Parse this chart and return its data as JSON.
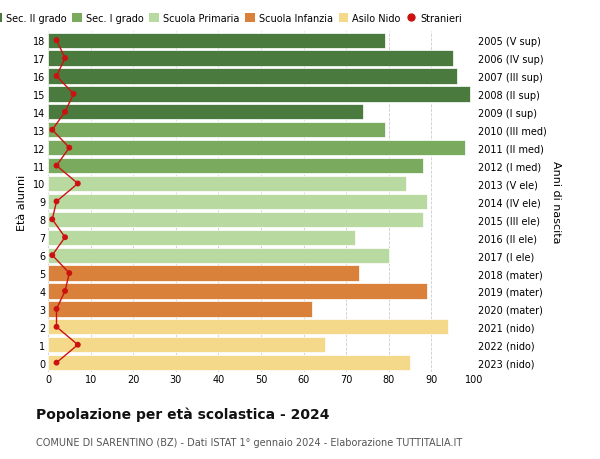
{
  "ages": [
    18,
    17,
    16,
    15,
    14,
    13,
    12,
    11,
    10,
    9,
    8,
    7,
    6,
    5,
    4,
    3,
    2,
    1,
    0
  ],
  "bar_values": [
    79,
    95,
    96,
    99,
    74,
    79,
    98,
    88,
    84,
    89,
    88,
    72,
    80,
    73,
    89,
    62,
    94,
    65,
    85
  ],
  "stranieri": [
    2,
    4,
    2,
    6,
    4,
    1,
    5,
    2,
    7,
    2,
    1,
    4,
    1,
    5,
    4,
    2,
    2,
    7,
    2
  ],
  "right_labels": [
    "2005 (V sup)",
    "2006 (IV sup)",
    "2007 (III sup)",
    "2008 (II sup)",
    "2009 (I sup)",
    "2010 (III med)",
    "2011 (II med)",
    "2012 (I med)",
    "2013 (V ele)",
    "2014 (IV ele)",
    "2015 (III ele)",
    "2016 (II ele)",
    "2017 (I ele)",
    "2018 (mater)",
    "2019 (mater)",
    "2020 (mater)",
    "2021 (nido)",
    "2022 (nido)",
    "2023 (nido)"
  ],
  "bar_colors": [
    "#4a7a3d",
    "#4a7a3d",
    "#4a7a3d",
    "#4a7a3d",
    "#4a7a3d",
    "#7aaa5e",
    "#7aaa5e",
    "#7aaa5e",
    "#b8d9a0",
    "#b8d9a0",
    "#b8d9a0",
    "#b8d9a0",
    "#b8d9a0",
    "#d9813a",
    "#d9813a",
    "#d9813a",
    "#f5d98b",
    "#f5d98b",
    "#f5d98b"
  ],
  "legend_labels": [
    "Sec. II grado",
    "Sec. I grado",
    "Scuola Primaria",
    "Scuola Infanzia",
    "Asilo Nido",
    "Stranieri"
  ],
  "legend_colors": [
    "#4a7a3d",
    "#7aaa5e",
    "#b8d9a0",
    "#d9813a",
    "#f5d98b",
    "#cc1111"
  ],
  "title": "Popolazione per età scolastica - 2024",
  "subtitle": "COMUNE DI SARENTINO (BZ) - Dati ISTAT 1° gennaio 2024 - Elaborazione TUTTITALIA.IT",
  "ylabel_left": "Età alunni",
  "ylabel_right": "Anni di nascita",
  "xlim": [
    0,
    100
  ],
  "xticks": [
    0,
    10,
    20,
    30,
    40,
    50,
    60,
    70,
    80,
    90,
    100
  ],
  "stranieri_color": "#cc1111",
  "background_color": "#ffffff",
  "grid_color": "#cccccc"
}
